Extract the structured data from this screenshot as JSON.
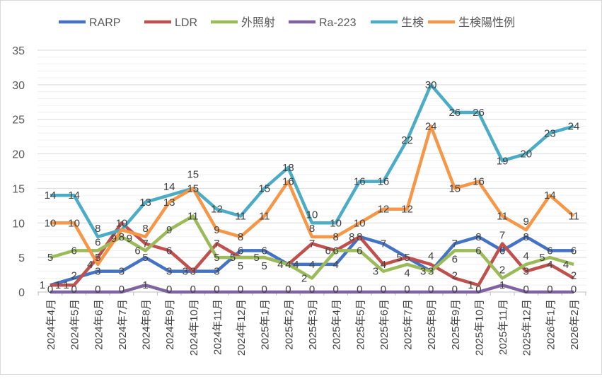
{
  "chart_data": {
    "type": "line",
    "title": "",
    "xlabel": "",
    "ylabel": "",
    "ylim": [
      0,
      35
    ],
    "yticks": [
      0,
      5,
      10,
      15,
      20,
      25,
      30,
      35
    ],
    "grid": true,
    "legend_position": "top",
    "categories": [
      "2024年4月",
      "2024年5月",
      "2024年6月",
      "2024年7月",
      "2024年8月",
      "2024年9月",
      "2024年10月",
      "2024年11月",
      "2024年12月",
      "2025年1月",
      "2025年2月",
      "2025年3月",
      "2025年4月",
      "2025年5月",
      "2025年6月",
      "2025年7月",
      "2025年8月",
      "2025年9月",
      "2025年10月",
      "2025年11月",
      "2025年12月",
      "2026年1月",
      "2026年2月"
    ],
    "series": [
      {
        "name": "RARP",
        "color": "#4472C4",
        "values": [
          1,
          2,
          3,
          3,
          5,
          3,
          3,
          3,
          6,
          6,
          4,
          4,
          4,
          8,
          7,
          5,
          3,
          7,
          8,
          6,
          8,
          6,
          6
        ]
      },
      {
        "name": "LDR",
        "color": "#C0504D",
        "values": [
          1,
          1,
          5,
          10,
          7,
          6,
          3,
          7,
          5,
          5,
          4,
          7,
          6,
          8,
          4,
          5,
          4,
          2,
          1,
          7,
          3,
          4,
          2
        ]
      },
      {
        "name": "外照射",
        "color": "#9BBB59",
        "values": [
          5,
          6,
          6,
          8,
          6,
          9,
          11,
          5,
          5,
          5,
          4,
          2,
          6,
          6,
          3,
          4,
          3,
          6,
          6,
          2,
          4,
          5,
          4
        ]
      },
      {
        "name": "Ra-223",
        "color": "#8064A2",
        "values": [
          0,
          0,
          0,
          0,
          1,
          0,
          0,
          0,
          0,
          0,
          0,
          0,
          0,
          0,
          0,
          0,
          0,
          0,
          0,
          1,
          0,
          0,
          0
        ]
      },
      {
        "name": "生検",
        "color": "#4BACC6",
        "values": [
          14,
          14,
          8,
          9,
          13,
          14,
          15,
          12,
          11,
          15,
          18,
          10,
          10,
          16,
          16,
          22,
          30,
          26,
          26,
          19,
          20,
          23,
          24
        ]
      },
      {
        "name": "生検陽性例",
        "color": "#F79646",
        "values": [
          10,
          10,
          4,
          9,
          8,
          13,
          15,
          9,
          8,
          11,
          16,
          8,
          8,
          10,
          12,
          12,
          24,
          15,
          16,
          11,
          9,
          14,
          11
        ]
      }
    ]
  }
}
